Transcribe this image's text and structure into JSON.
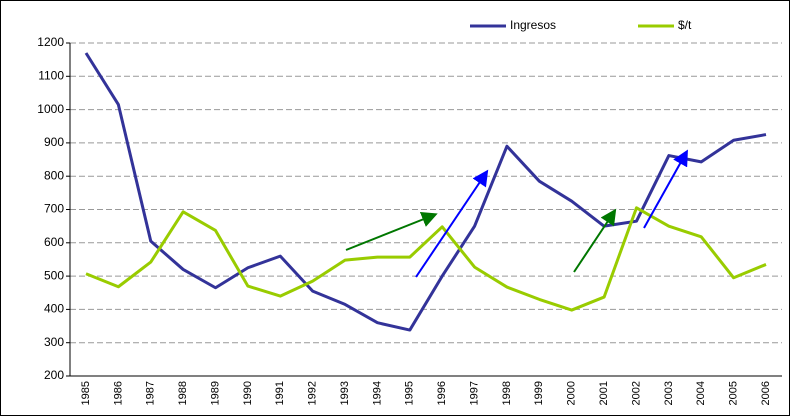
{
  "chart_data": {
    "type": "line",
    "categories": [
      "1985",
      "1986",
      "1987",
      "1988",
      "1989",
      "1990",
      "1991",
      "1992",
      "1993",
      "1994",
      "1995",
      "1996",
      "1997",
      "1998",
      "1999",
      "2000",
      "2001",
      "2002",
      "2003",
      "2004",
      "2005",
      "2006"
    ],
    "series": [
      {
        "name": "Ingresos",
        "color": "#333399",
        "values": [
          1170,
          1015,
          605,
          520,
          465,
          525,
          560,
          455,
          415,
          360,
          338,
          500,
          650,
          890,
          785,
          725,
          650,
          665,
          862,
          843,
          908,
          925
        ]
      },
      {
        "name": "$/t",
        "color": "#99cc00",
        "values": [
          507,
          468,
          542,
          693,
          637,
          470,
          440,
          485,
          548,
          557,
          557,
          648,
          527,
          467,
          430,
          398,
          437,
          705,
          650,
          618,
          495,
          535
        ]
      }
    ],
    "ylim": [
      200,
      1200
    ],
    "yticks": [
      200,
      300,
      400,
      500,
      600,
      700,
      800,
      900,
      1000,
      1100,
      1200
    ],
    "grid": true,
    "legend": "top"
  }
}
